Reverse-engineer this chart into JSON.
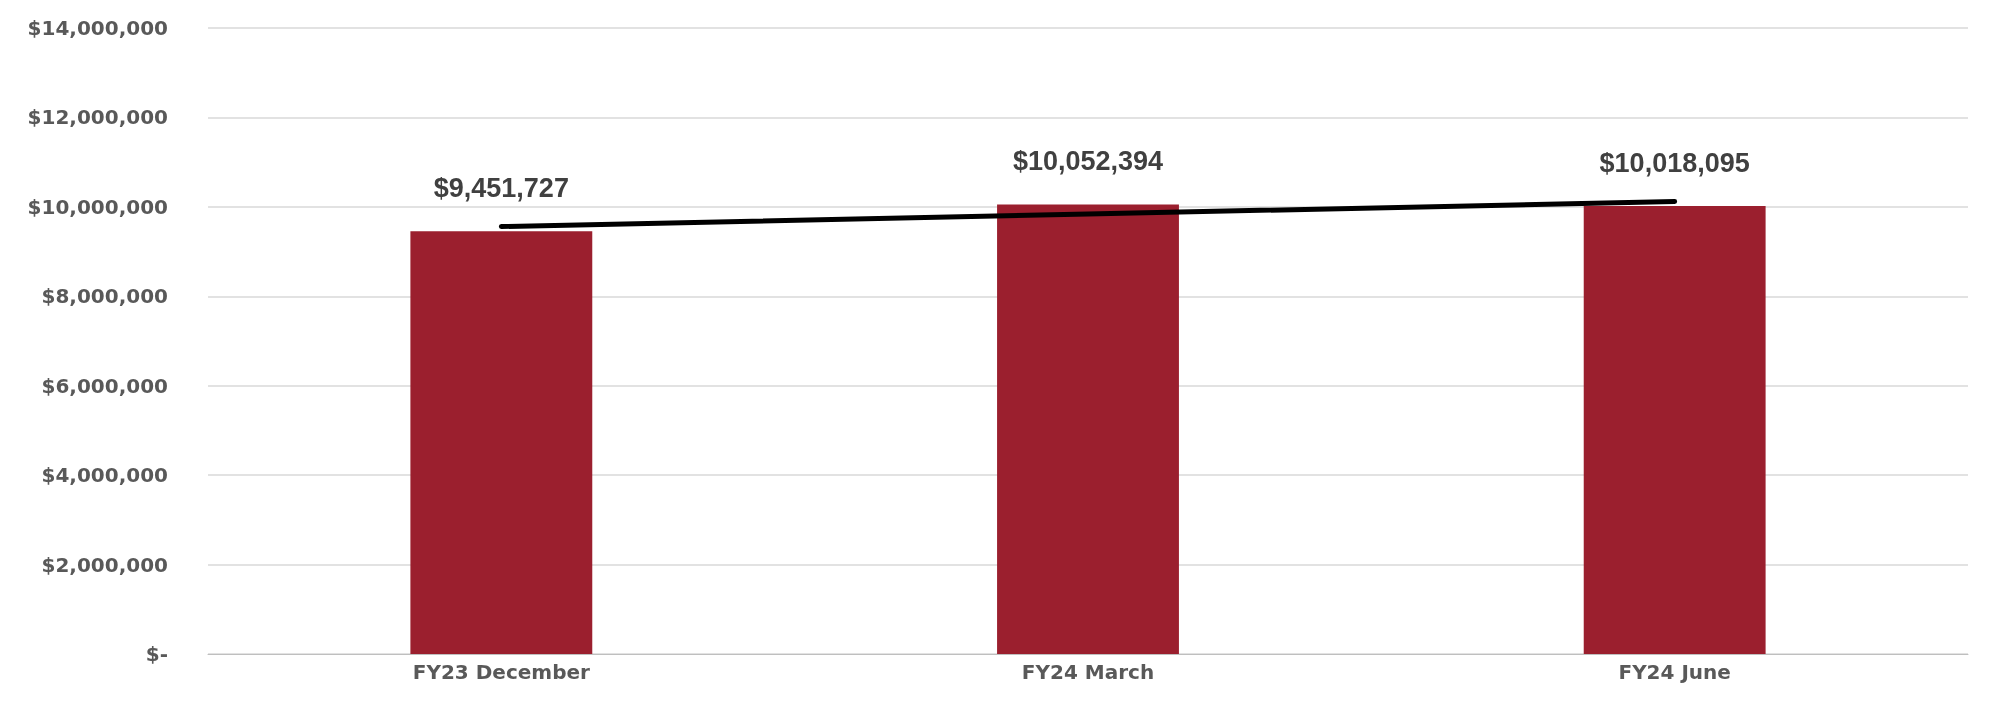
{
  "chart_data": {
    "type": "bar",
    "categories": [
      "FY23 December",
      "FY24 March",
      "FY24 June"
    ],
    "series": [
      {
        "color": "#9b1f2e",
        "values": [
          9451727,
          10052394,
          10018095
        ],
        "value_labels": [
          "$9,451,727",
          "$10,052,394",
          "$10,018,095"
        ]
      },
      {
        "type": "line",
        "color": "#000000",
        "x": [
          "FY23 December",
          "FY24 March",
          "FY24 June"
        ],
        "values": [
          9560000,
          9840000,
          10120000
        ],
        "marker": "none",
        "line_style": "solid"
      }
    ],
    "ylim": [
      0,
      14000000
    ],
    "yticks": [
      {
        "value": 0,
        "label": "$-"
      },
      {
        "value": 2000000,
        "label": "$2,000,000"
      },
      {
        "value": 4000000,
        "label": "$4,000,000"
      },
      {
        "value": 6000000,
        "label": "$6,000,000"
      },
      {
        "value": 8000000,
        "label": "$8,000,000"
      },
      {
        "value": 10000000,
        "label": "$10,000,000"
      },
      {
        "value": 12000000,
        "label": "$12,000,000"
      },
      {
        "value": 14000000,
        "label": "$14,000,000"
      }
    ],
    "grid": "y"
  }
}
